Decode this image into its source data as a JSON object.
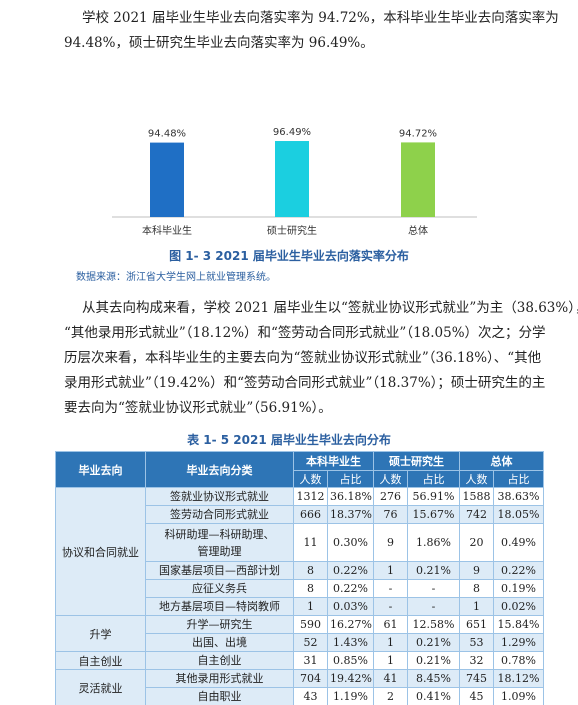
{
  "intro": {
    "line1": "学校 2021 届毕业生毕业去向落实率为 94.72%，本科毕业生毕业去向落实率为",
    "line2": "94.48%，硕士研究生毕业去向落实率为 96.49%。"
  },
  "chart_data": {
    "type": "bar",
    "categories": [
      "本科毕业生",
      "硕士研究生",
      "总体"
    ],
    "values": [
      94.48,
      96.49,
      94.72
    ],
    "data_labels": [
      "94.48%",
      "96.49%",
      "94.72%"
    ],
    "colors": [
      "#1f6fc5",
      "#1bcfe0",
      "#8ed14b"
    ],
    "title": "",
    "xlabel": "",
    "ylabel": ""
  },
  "figure": {
    "caption": "图 1- 3    2021 届毕业生毕业去向落实率分布",
    "source": "数据来源：浙江省大学生网上就业管理系统。"
  },
  "body": {
    "line1": "从其去向构成来看，学校 2021 届毕业生以“签就业协议形式就业”为主（38.63%），",
    "line2": "“其他录用形式就业”（18.12%）和“签劳动合同形式就业”（18.05%）次之；分学",
    "line3": "历层次来看，本科毕业生的主要去向为“签就业协议形式就业”（36.18%）、“其他",
    "line4": "录用形式就业”（19.42%）和“签劳动合同形式就业”（18.37%）；硕士研究生的主",
    "line5": "要去向为“签就业协议形式就业”（56.91%）。"
  },
  "table": {
    "caption": "表 1- 5    2021 届毕业生毕业去向分布",
    "headers": {
      "col1": "毕业去向",
      "col2": "毕业去向分类",
      "g1": "本科毕业生",
      "g2": "硕士研究生",
      "g3": "总体",
      "count": "人数",
      "ratio": "占比"
    },
    "rows": [
      {
        "cat": "协议和合同就业",
        "sub": "签就业协议形式就业",
        "v": [
          "1312",
          "36.18%",
          "276",
          "56.91%",
          "1588",
          "38.63%"
        ]
      },
      {
        "sub": "签劳动合同形式就业",
        "v": [
          "666",
          "18.37%",
          "76",
          "15.67%",
          "742",
          "18.05%"
        ]
      },
      {
        "sub": "科研助理—科研助理、管理助理",
        "sub1": "科研助理—科研助理、",
        "sub2": "管理助理",
        "v": [
          "11",
          "0.30%",
          "9",
          "1.86%",
          "20",
          "0.49%"
        ]
      },
      {
        "sub": "国家基层项目—西部计划",
        "v": [
          "8",
          "0.22%",
          "1",
          "0.21%",
          "9",
          "0.22%"
        ]
      },
      {
        "sub": "应征义务兵",
        "v": [
          "8",
          "0.22%",
          "-",
          "-",
          "8",
          "0.19%"
        ]
      },
      {
        "sub": "地方基层项目—特岗教师",
        "v": [
          "1",
          "0.03%",
          "-",
          "-",
          "1",
          "0.02%"
        ]
      },
      {
        "cat": "升学",
        "sub": "升学—研究生",
        "v": [
          "590",
          "16.27%",
          "61",
          "12.58%",
          "651",
          "15.84%"
        ]
      },
      {
        "sub": "出国、出境",
        "v": [
          "52",
          "1.43%",
          "1",
          "0.21%",
          "53",
          "1.29%"
        ]
      },
      {
        "cat": "自主创业",
        "sub": "自主创业",
        "v": [
          "31",
          "0.85%",
          "1",
          "0.21%",
          "32",
          "0.78%"
        ]
      },
      {
        "cat": "灵活就业",
        "sub": "其他录用形式就业",
        "v": [
          "704",
          "19.42%",
          "41",
          "8.45%",
          "745",
          "18.12%"
        ]
      },
      {
        "sub": "自由职业",
        "v": [
          "43",
          "1.19%",
          "2",
          "0.41%",
          "45",
          "1.09%"
        ]
      }
    ]
  }
}
